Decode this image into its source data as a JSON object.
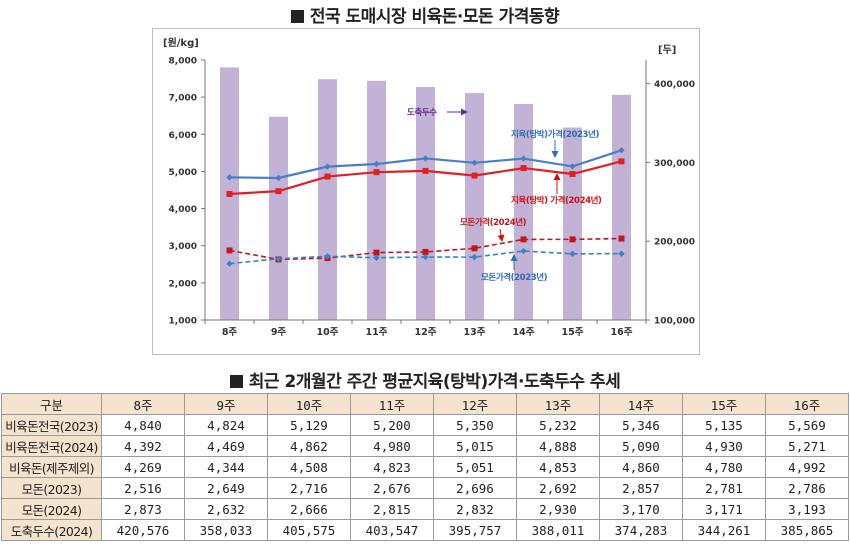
{
  "titles": {
    "chart": "전국 도매시장 비육돈·모돈 가격동향",
    "table": "최근 2개월간 주간 평균지육(탕박)가격·도축두수 추세"
  },
  "chart_data": {
    "type": "bar+line",
    "categories": [
      "8주",
      "9주",
      "10주",
      "11주",
      "12주",
      "13주",
      "14주",
      "15주",
      "16주"
    ],
    "y_left": {
      "label": "[원/kg]",
      "range": [
        1000,
        8000
      ],
      "ticks": [
        "1,000",
        "2,000",
        "3,000",
        "4,000",
        "5,000",
        "6,000",
        "7,000",
        "8,000"
      ]
    },
    "y_right": {
      "label": "[두]",
      "range": [
        100000,
        430000
      ],
      "ticks": [
        "100,000",
        "200,000",
        "300,000",
        "400,000"
      ]
    },
    "bars": {
      "name": "도축두수",
      "axis": "right",
      "color": "#c2b3d6",
      "values": [
        420576,
        358033,
        405575,
        403547,
        395757,
        388011,
        374283,
        344261,
        385865
      ]
    },
    "series": [
      {
        "name": "지육(탕박)가격(2023년)",
        "axis": "left",
        "color": "#4a7ec4",
        "style": "solid",
        "marker": "diamond",
        "values": [
          4840,
          4824,
          5129,
          5200,
          5350,
          5232,
          5346,
          5135,
          5569
        ]
      },
      {
        "name": "지육(탕박) 가격(2024년)",
        "axis": "left",
        "color": "#e02020",
        "style": "solid",
        "marker": "square",
        "values": [
          4392,
          4469,
          4862,
          4980,
          5015,
          4888,
          5090,
          4930,
          5271
        ]
      },
      {
        "name": "모돈가격(2024년)",
        "axis": "left",
        "color": "#c01818",
        "style": "dashed",
        "marker": "square",
        "values": [
          2873,
          2632,
          2666,
          2815,
          2832,
          2930,
          3170,
          3171,
          3193
        ]
      },
      {
        "name": "모돈가격(2023년)",
        "axis": "left",
        "color": "#3f7fc8",
        "style": "dashed",
        "marker": "diamond",
        "values": [
          2516,
          2649,
          2716,
          2676,
          2696,
          2692,
          2857,
          2781,
          2786
        ]
      }
    ],
    "grid": false,
    "legend": "inline annotations"
  },
  "table": {
    "headers": [
      "구분",
      "8주",
      "9주",
      "10주",
      "11주",
      "12주",
      "13주",
      "14주",
      "15주",
      "16주"
    ],
    "rows": [
      {
        "label": "비육돈전국(2023)",
        "values": [
          "4,840",
          "4,824",
          "5,129",
          "5,200",
          "5,350",
          "5,232",
          "5,346",
          "5,135",
          "5,569"
        ]
      },
      {
        "label": "비육돈전국(2024)",
        "values": [
          "4,392",
          "4,469",
          "4,862",
          "4,980",
          "5,015",
          "4,888",
          "5,090",
          "4,930",
          "5,271"
        ]
      },
      {
        "label": "비육돈(제주제외)",
        "values": [
          "4,269",
          "4,344",
          "4,508",
          "4,823",
          "5,051",
          "4,853",
          "4,860",
          "4,780",
          "4,992"
        ]
      },
      {
        "label": "모돈(2023)",
        "values": [
          "2,516",
          "2,649",
          "2,716",
          "2,676",
          "2,696",
          "2,692",
          "2,857",
          "2,781",
          "2,786"
        ]
      },
      {
        "label": "모돈(2024)",
        "values": [
          "2,873",
          "2,632",
          "2,666",
          "2,815",
          "2,832",
          "2,930",
          "3,170",
          "3,171",
          "3,193"
        ]
      },
      {
        "label": "도축두수(2024)",
        "values": [
          "420,576",
          "358,033",
          "405,575",
          "403,547",
          "395,757",
          "388,011",
          "374,283",
          "344,261",
          "385,865"
        ]
      }
    ]
  }
}
